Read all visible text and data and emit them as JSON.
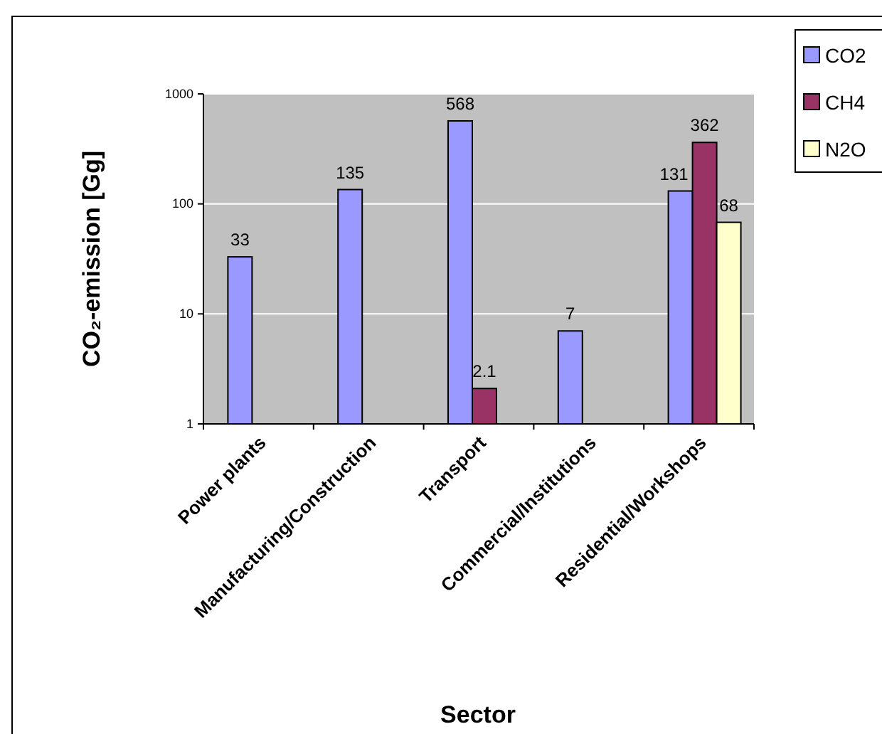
{
  "chart_data": {
    "type": "bar",
    "xlabel": "Sector",
    "ylabel": "CO₂-emission [Gg]",
    "categories": [
      "Power plants",
      "Manufacturing/Construction",
      "Transport",
      "Commercial/Institutions",
      "Residential/Workshops"
    ],
    "series": [
      {
        "name": "CO2",
        "color": "#9999ff",
        "values": [
          33,
          135,
          568,
          7,
          131
        ]
      },
      {
        "name": "CH4",
        "color": "#993366",
        "values": [
          null,
          null,
          2.1,
          null,
          362
        ]
      },
      {
        "name": "N2O",
        "color": "#ffffcc",
        "values": [
          null,
          null,
          null,
          null,
          68
        ]
      }
    ],
    "log": true,
    "ylim": [
      1,
      1000
    ],
    "yticks": [
      1,
      10,
      100,
      1000
    ],
    "grid": "y",
    "legend": "top right",
    "data_labels": true
  }
}
